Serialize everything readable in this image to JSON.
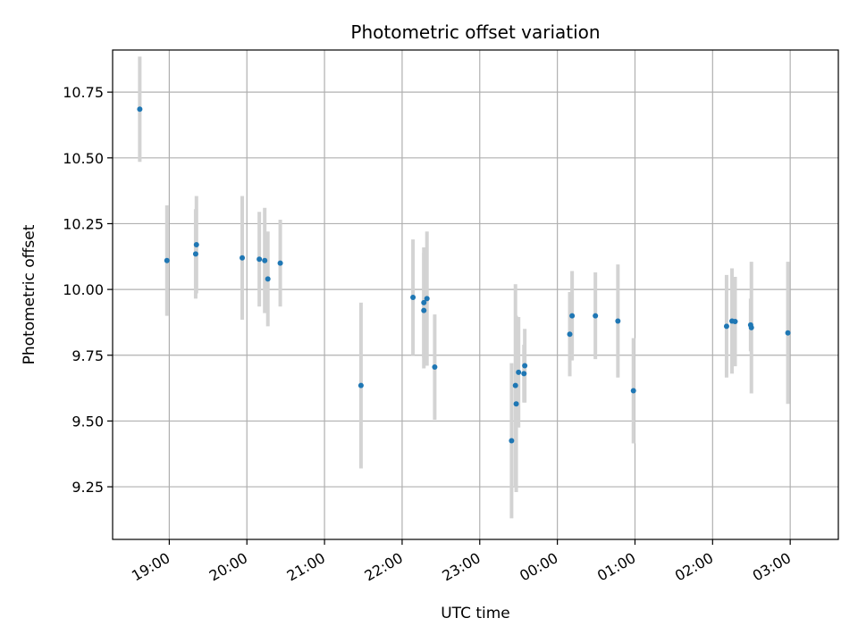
{
  "chart_data": {
    "type": "scatter",
    "title": "Photometric offset variation",
    "xlabel": "UTC time",
    "ylabel": "Photometric offset",
    "grid": true,
    "x_unit": "hours since 18:00 UTC",
    "xlim": [
      0.27,
      9.62
    ],
    "ylim": [
      9.05,
      10.91
    ],
    "x_ticks": [
      {
        "value": 1,
        "label": "19:00"
      },
      {
        "value": 2,
        "label": "20:00"
      },
      {
        "value": 3,
        "label": "21:00"
      },
      {
        "value": 4,
        "label": "22:00"
      },
      {
        "value": 5,
        "label": "23:00"
      },
      {
        "value": 6,
        "label": "00:00"
      },
      {
        "value": 7,
        "label": "01:00"
      },
      {
        "value": 8,
        "label": "02:00"
      },
      {
        "value": 9,
        "label": "03:00"
      }
    ],
    "y_ticks": [
      {
        "value": 9.25,
        "label": "9.25"
      },
      {
        "value": 9.5,
        "label": "9.50"
      },
      {
        "value": 9.75,
        "label": "9.75"
      },
      {
        "value": 10.0,
        "label": "10.00"
      },
      {
        "value": 10.25,
        "label": "10.25"
      },
      {
        "value": 10.5,
        "label": "10.50"
      },
      {
        "value": 10.75,
        "label": "10.75"
      }
    ],
    "series": [
      {
        "name": "offset",
        "color": "#1f77b4",
        "error_color": "#d3d3d3",
        "points": [
          {
            "x": 0.62,
            "y": 10.685,
            "err": 0.2
          },
          {
            "x": 0.97,
            "y": 10.11,
            "err": 0.21
          },
          {
            "x": 1.35,
            "y": 10.17,
            "err": 0.185
          },
          {
            "x": 1.34,
            "y": 10.135,
            "err": 0.17
          },
          {
            "x": 1.94,
            "y": 10.12,
            "err": 0.235
          },
          {
            "x": 2.16,
            "y": 10.115,
            "err": 0.18
          },
          {
            "x": 2.23,
            "y": 10.11,
            "err": 0.2
          },
          {
            "x": 2.27,
            "y": 10.04,
            "err": 0.18
          },
          {
            "x": 2.43,
            "y": 10.1,
            "err": 0.165
          },
          {
            "x": 3.47,
            "y": 9.635,
            "err": 0.315
          },
          {
            "x": 4.14,
            "y": 9.97,
            "err": 0.22
          },
          {
            "x": 4.28,
            "y": 9.95,
            "err": 0.21
          },
          {
            "x": 4.28,
            "y": 9.92,
            "err": 0.22
          },
          {
            "x": 4.32,
            "y": 9.965,
            "err": 0.255
          },
          {
            "x": 4.42,
            "y": 9.705,
            "err": 0.2
          },
          {
            "x": 5.41,
            "y": 9.425,
            "err": 0.295
          },
          {
            "x": 5.46,
            "y": 9.635,
            "err": 0.385
          },
          {
            "x": 5.47,
            "y": 9.565,
            "err": 0.335
          },
          {
            "x": 5.5,
            "y": 9.685,
            "err": 0.21
          },
          {
            "x": 5.57,
            "y": 9.68,
            "err": 0.11
          },
          {
            "x": 5.58,
            "y": 9.71,
            "err": 0.14
          },
          {
            "x": 6.16,
            "y": 9.83,
            "err": 0.16
          },
          {
            "x": 6.19,
            "y": 9.9,
            "err": 0.17
          },
          {
            "x": 6.49,
            "y": 9.9,
            "err": 0.165
          },
          {
            "x": 6.78,
            "y": 9.88,
            "err": 0.215
          },
          {
            "x": 6.98,
            "y": 9.615,
            "err": 0.2
          },
          {
            "x": 8.18,
            "y": 9.86,
            "err": 0.195
          },
          {
            "x": 8.25,
            "y": 9.88,
            "err": 0.2
          },
          {
            "x": 8.29,
            "y": 9.878,
            "err": 0.17
          },
          {
            "x": 8.49,
            "y": 9.865,
            "err": 0.1
          },
          {
            "x": 8.5,
            "y": 9.855,
            "err": 0.25
          },
          {
            "x": 8.97,
            "y": 9.835,
            "err": 0.27
          }
        ]
      }
    ]
  }
}
